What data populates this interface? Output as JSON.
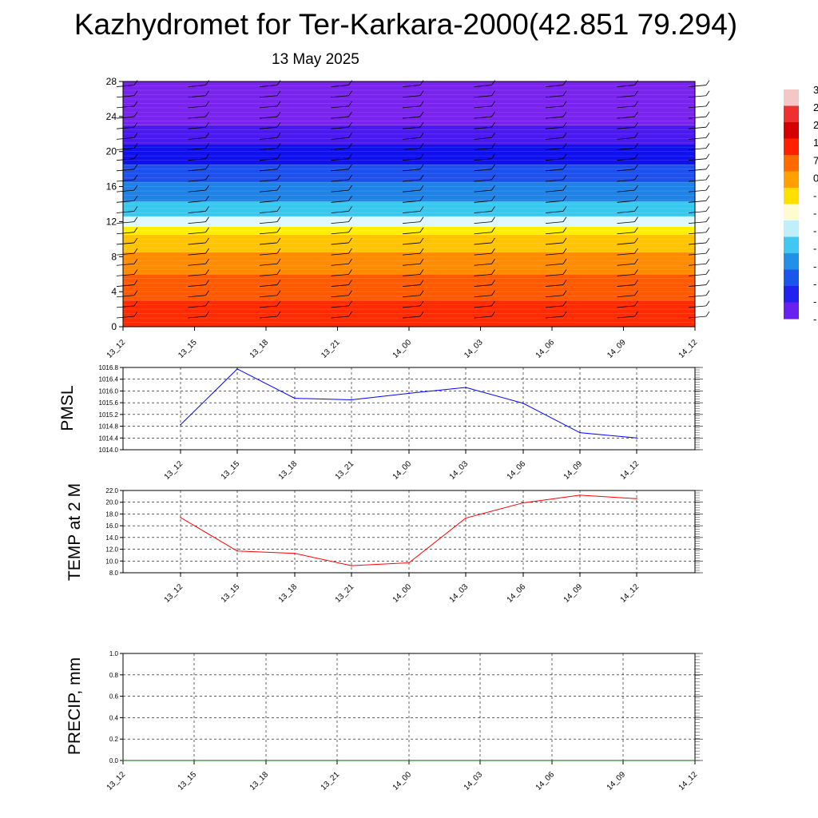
{
  "title": "Kazhydromet for Ter-Karkara-2000(42.851 79.294)",
  "subtitle": "13 May 2025",
  "colors": {
    "pmsl_line": "#0000ff",
    "temp_line": "#ff0000",
    "precip_line": "#006400",
    "grid": "#000000"
  },
  "chart_data": [
    {
      "type": "heatmap",
      "name": "vertical-profile",
      "x_ticks": [
        "13_12",
        "13_15",
        "13_18",
        "13_21",
        "14_00",
        "14_03",
        "14_06",
        "14_09",
        "14_12"
      ],
      "y_ticks": [
        "0",
        "4",
        "8",
        "12",
        "16",
        "20",
        "24",
        "28"
      ],
      "ylim": [
        0,
        28
      ],
      "color_bands": [
        {
          "from": 0,
          "to": 3,
          "color": "#ff2a00"
        },
        {
          "from": 3,
          "to": 6,
          "color": "#ff5a00"
        },
        {
          "from": 6,
          "to": 8.5,
          "color": "#ff8c00"
        },
        {
          "from": 8.5,
          "to": 10.5,
          "color": "#ffc400"
        },
        {
          "from": 10.5,
          "to": 11.4,
          "color": "#fff000"
        },
        {
          "from": 11.4,
          "to": 12.6,
          "color": "#e0f7ff"
        },
        {
          "from": 12.6,
          "to": 14.3,
          "color": "#37c8f0"
        },
        {
          "from": 14.3,
          "to": 16.5,
          "color": "#1e82e6"
        },
        {
          "from": 16.5,
          "to": 18.5,
          "color": "#1e50ee"
        },
        {
          "from": 18.5,
          "to": 20.8,
          "color": "#1010ee"
        },
        {
          "from": 20.8,
          "to": 23.0,
          "color": "#4a18f0"
        },
        {
          "from": 23.0,
          "to": 28,
          "color": "#7a22ee"
        }
      ],
      "colorbar_labels": [
        "3",
        "2",
        "2",
        "1",
        "7",
        "0",
        "-",
        "-",
        "-",
        "-",
        "-",
        "-",
        "-",
        "-"
      ],
      "colorbar_colors": [
        "#f5c6c6",
        "#ee3030",
        "#d40000",
        "#ff2000",
        "#ff6a00",
        "#ffa000",
        "#ffe000",
        "#fffbd0",
        "#bfeefc",
        "#40c8f0",
        "#2090e8",
        "#1a56ea",
        "#2222ee",
        "#6a20ee"
      ]
    },
    {
      "type": "line",
      "name": "pmsl",
      "ylabel": "PMSL",
      "x": [
        "13_12",
        "13_15",
        "13_18",
        "13_21",
        "14_00",
        "14_03",
        "14_06",
        "14_09",
        "14_12"
      ],
      "series": [
        {
          "values": [
            1014.85,
            1016.75,
            1015.75,
            1015.7,
            1015.92,
            1016.12,
            1015.58,
            1014.58,
            1014.4
          ]
        }
      ],
      "ylim": [
        1014.0,
        1016.8
      ],
      "y_ticks": [
        "1014.0",
        "1014.4",
        "1014.8",
        "1015.2",
        "1015.6",
        "1016.0",
        "1016.4",
        "1016.8"
      ],
      "grid": true
    },
    {
      "type": "line",
      "name": "temp",
      "ylabel": "TEMP at 2 M",
      "x": [
        "13_12",
        "13_15",
        "13_18",
        "13_21",
        "14_00",
        "14_03",
        "14_06",
        "14_09",
        "14_12"
      ],
      "series": [
        {
          "values": [
            17.4,
            11.7,
            11.3,
            9.2,
            9.7,
            17.3,
            19.9,
            21.2,
            20.6
          ]
        }
      ],
      "ylim": [
        8.0,
        22.0
      ],
      "y_ticks": [
        "8.0",
        "10.0",
        "12.0",
        "14.0",
        "16.0",
        "18.0",
        "20.0",
        "22.0"
      ],
      "grid": true
    },
    {
      "type": "line",
      "name": "precip",
      "ylabel": "PRECIP, mm",
      "x": [
        "13_12",
        "13_15",
        "13_18",
        "13_21",
        "14_00",
        "14_03",
        "14_06",
        "14_09",
        "14_12"
      ],
      "series": [
        {
          "values": [
            0,
            0,
            0,
            0,
            0,
            0,
            0,
            0,
            0
          ]
        }
      ],
      "ylim": [
        0.0,
        1.0
      ],
      "y_ticks": [
        "0.0",
        "0.2",
        "0.4",
        "0.6",
        "0.8",
        "1.0"
      ],
      "grid": true
    }
  ]
}
